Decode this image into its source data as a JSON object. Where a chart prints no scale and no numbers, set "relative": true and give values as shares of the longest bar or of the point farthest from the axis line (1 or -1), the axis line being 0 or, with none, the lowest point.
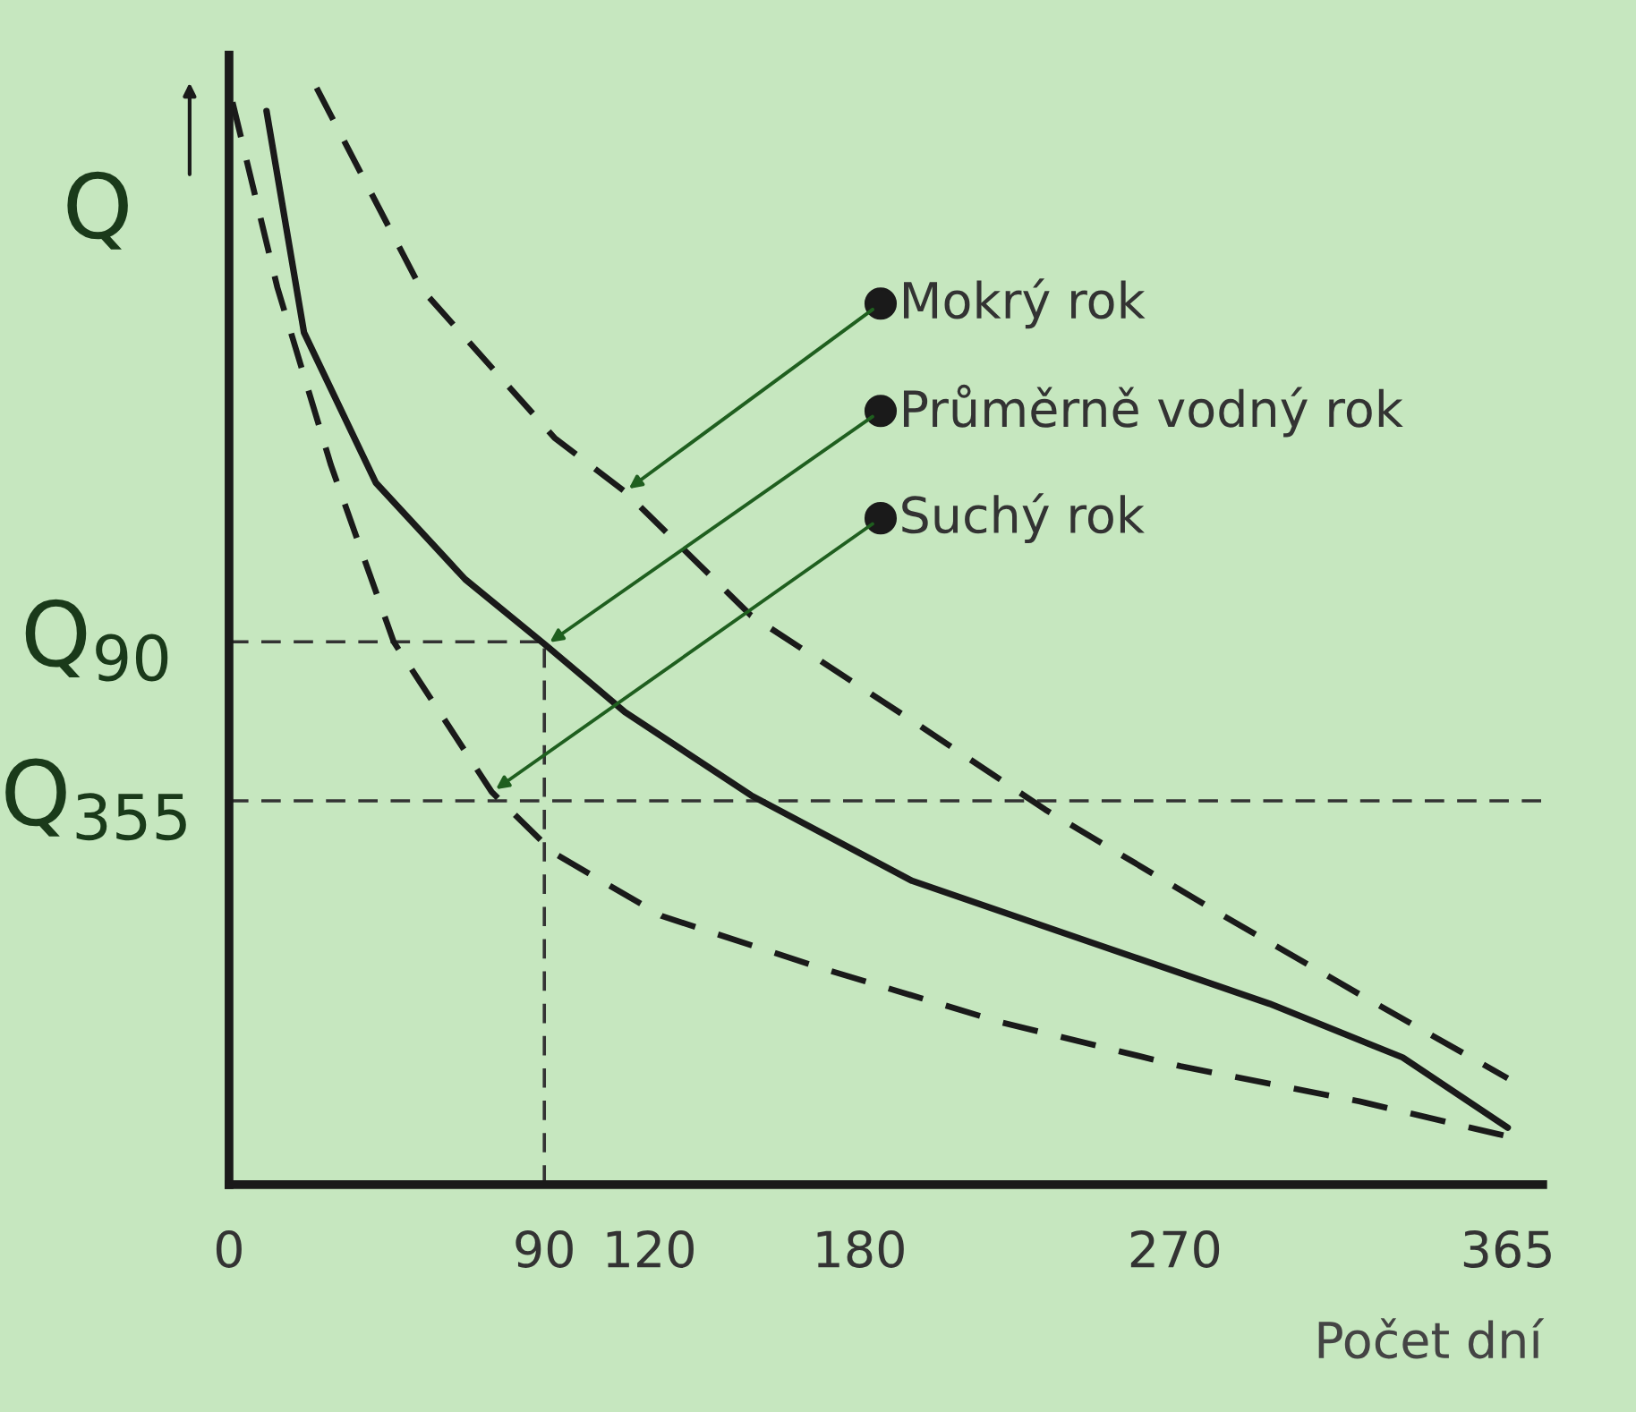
{
  "chart_data": {
    "type": "line",
    "relative": true,
    "ylabel": "Q",
    "xlabel": "Počet dní",
    "xlim": [
      0,
      375
    ],
    "xticks": [
      0,
      90,
      120,
      180,
      270,
      365
    ],
    "tick_labels": "x",
    "grid": false,
    "legend": "top right",
    "marker": "none",
    "series": [
      {
        "name": "Mokrý rok",
        "color": "#1a1a1a",
        "line_style": "dashed",
        "x": [
          25,
          54.6,
          92.9,
          113,
          149,
          195,
          233,
          284,
          323,
          365
        ],
        "values": [
          1.0,
          0.818,
          0.681,
          0.632,
          0.519,
          0.423,
          0.342,
          0.245,
          0.173,
          0.097
        ]
      },
      {
        "name": "Průměrně vodný rok",
        "color": "#1a1a1a",
        "line_style": "solid",
        "x": [
          10.7,
          21.4,
          41.9,
          67.4,
          90.4,
          113,
          149,
          195,
          246,
          297,
          335,
          365
        ],
        "values": [
          0.979,
          0.777,
          0.64,
          0.552,
          0.492,
          0.431,
          0.355,
          0.277,
          0.221,
          0.165,
          0.116,
          0.052
        ]
      },
      {
        "name": "Suchý rok",
        "color": "#1a1a1a",
        "line_style": "dashed",
        "x": [
          1,
          13.8,
          29.1,
          47,
          75,
          92.9,
          123.5,
          169.5,
          220.5,
          271.6,
          322.6,
          365
        ],
        "values": [
          0.987,
          0.818,
          0.656,
          0.495,
          0.358,
          0.302,
          0.245,
          0.197,
          0.148,
          0.108,
          0.076,
          0.044
        ]
      }
    ],
    "ref_lines": [
      {
        "axis": "y",
        "value": 0.495,
        "label": "Q$_{90}$",
        "line_style": "dashed",
        "color": "#333333"
      },
      {
        "axis": "y",
        "value": 0.35,
        "label": "Q$_{355}$",
        "line_style": "dashed",
        "color": "#333333"
      },
      {
        "axis": "x",
        "value": 90,
        "line_style": "dashed",
        "color": "#333333"
      }
    ]
  }
}
